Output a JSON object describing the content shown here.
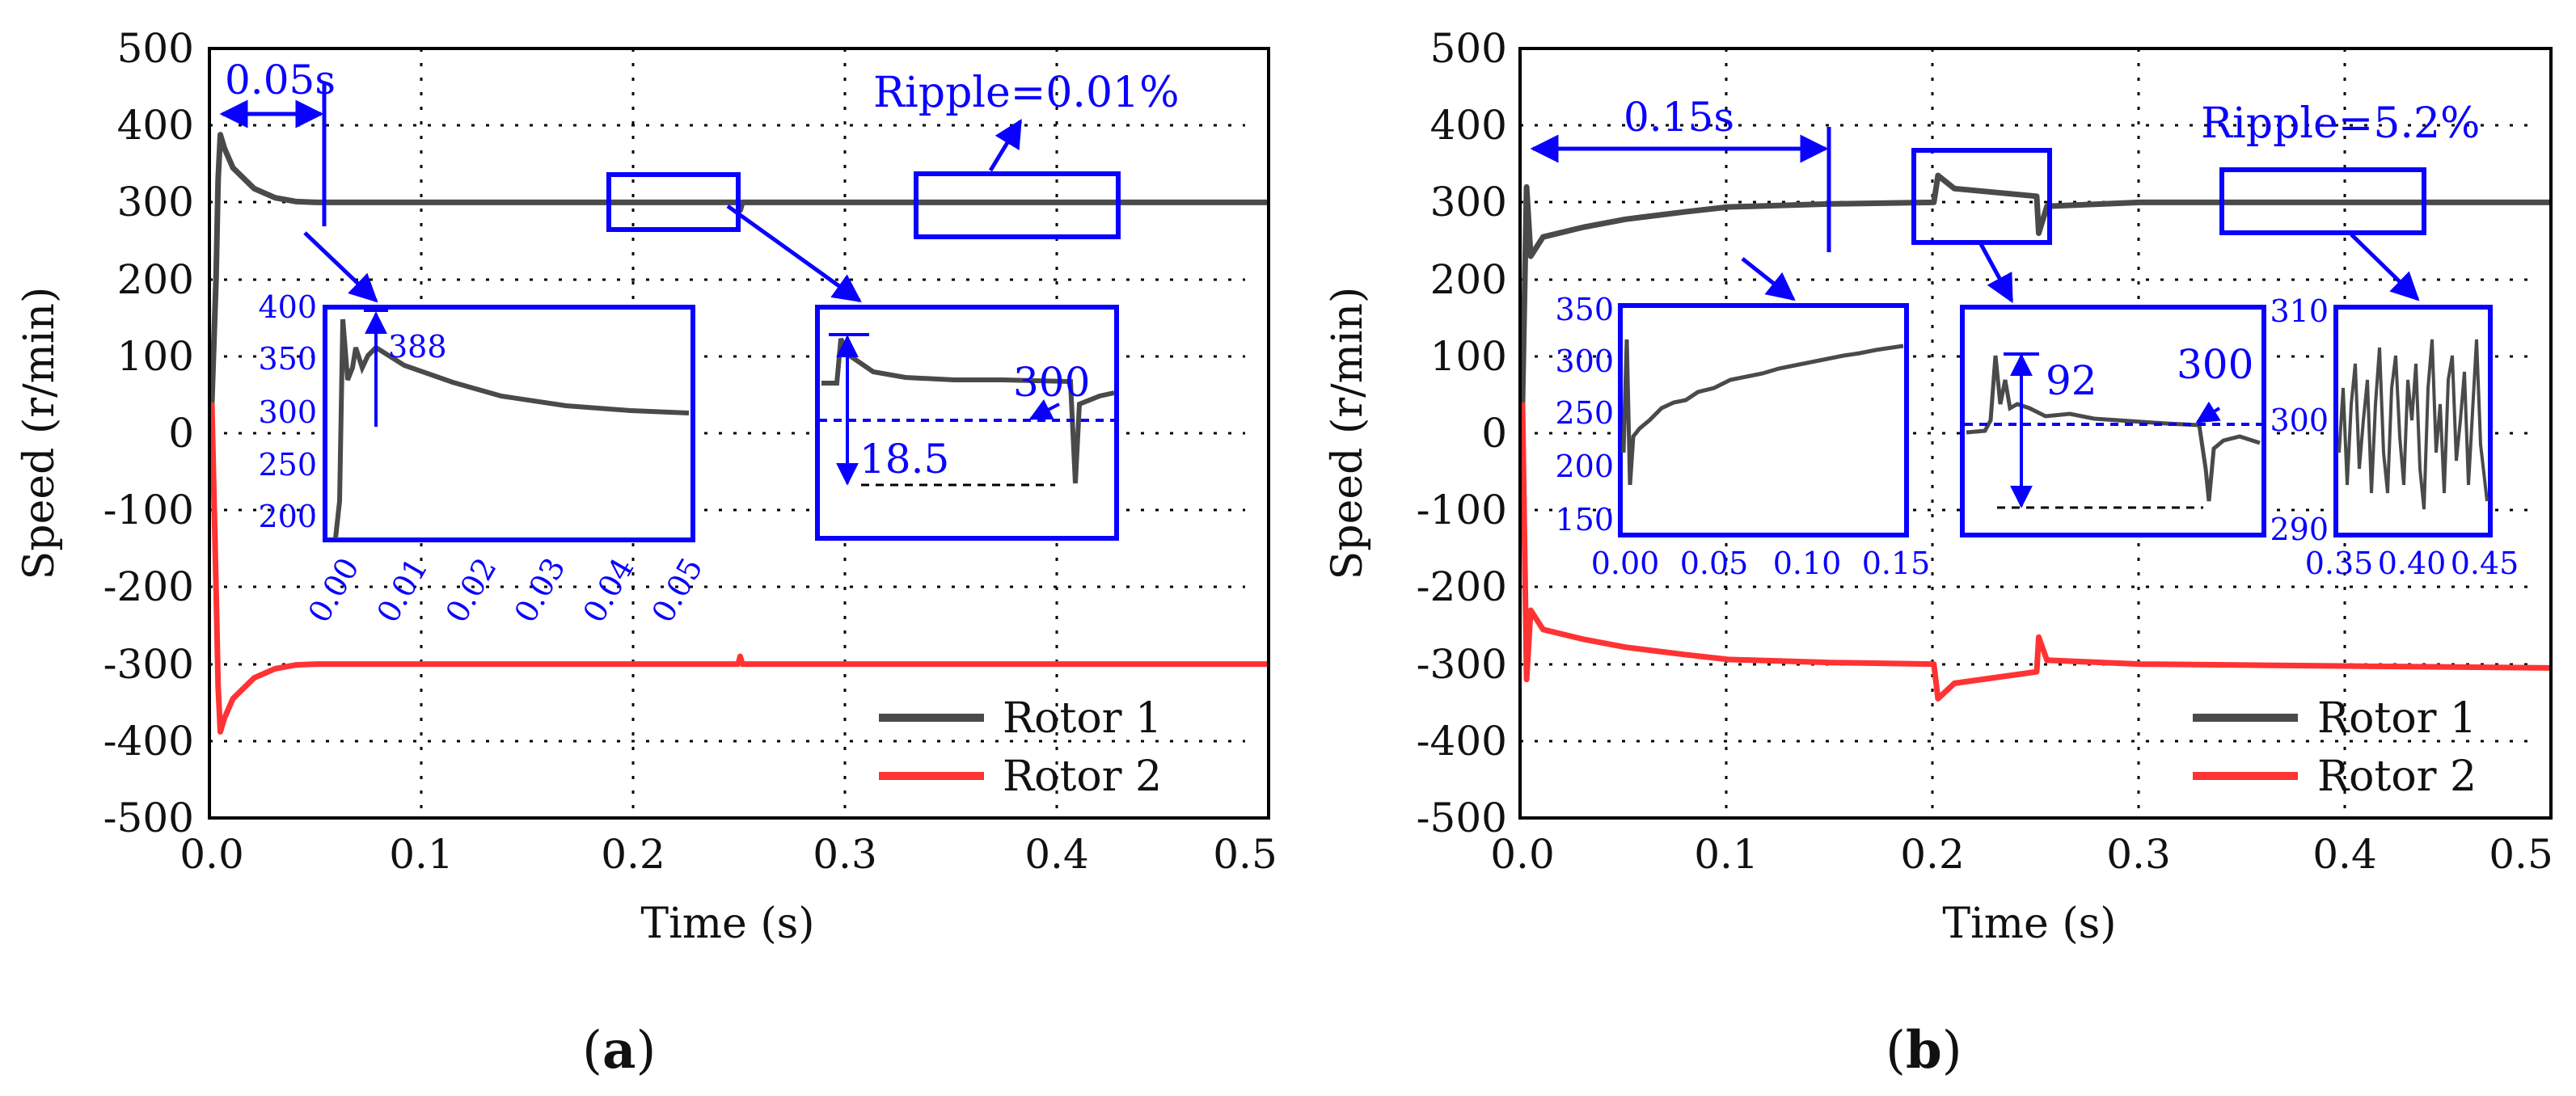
{
  "chart_data": [
    {
      "type": "line",
      "panel_label": "a",
      "xlabel": "Time (s)",
      "ylabel": "Speed (r/min)",
      "xlim": [
        0,
        0.5
      ],
      "ylim": [
        -500,
        500
      ],
      "xticks": [
        "0.0",
        "0.1",
        "0.2",
        "0.3",
        "0.4",
        "0.5"
      ],
      "yticks": [
        "500",
        "400",
        "300",
        "200",
        "100",
        "0",
        "-100",
        "-200",
        "-300",
        "-400",
        "-500"
      ],
      "grid": true,
      "legend_position": "bottom-right",
      "series": [
        {
          "name": "Rotor 1",
          "color": "#4a4a4a",
          "points": [
            [
              0,
              40
            ],
            [
              0.002,
              200
            ],
            [
              0.003,
              330
            ],
            [
              0.004,
              388
            ],
            [
              0.006,
              370
            ],
            [
              0.01,
              345
            ],
            [
              0.02,
              318
            ],
            [
              0.03,
              306
            ],
            [
              0.04,
              301
            ],
            [
              0.05,
              300
            ],
            [
              0.2,
              300
            ],
            [
              0.249,
              300
            ],
            [
              0.25,
              290
            ],
            [
              0.251,
              300
            ],
            [
              0.5,
              300
            ]
          ]
        },
        {
          "name": "Rotor 2",
          "color": "#ff3333",
          "points": [
            [
              0,
              40
            ],
            [
              0.002,
              -200
            ],
            [
              0.003,
              -330
            ],
            [
              0.004,
              -388
            ],
            [
              0.006,
              -370
            ],
            [
              0.01,
              -345
            ],
            [
              0.02,
              -318
            ],
            [
              0.03,
              -306
            ],
            [
              0.04,
              -301
            ],
            [
              0.05,
              -300
            ],
            [
              0.249,
              -300
            ],
            [
              0.25,
              -290
            ],
            [
              0.251,
              -300
            ],
            [
              0.5,
              -300
            ]
          ]
        }
      ],
      "annotations": {
        "settle_time": "0.05s",
        "ripple": "Ripple=0.01%",
        "inset1": {
          "yticks": [
            "400",
            "350",
            "300",
            "250",
            "200"
          ],
          "xticks": [
            "0.00",
            "0.01",
            "0.02",
            "0.03",
            "0.04",
            "0.05"
          ],
          "peak_label": "388"
        },
        "inset2": {
          "ref_label": "300",
          "drop_label": "18.5"
        }
      }
    },
    {
      "type": "line",
      "panel_label": "b",
      "xlabel": "Time (s)",
      "ylabel": "Speed (r/min)",
      "xlim": [
        0,
        0.5
      ],
      "ylim": [
        -500,
        500
      ],
      "xticks": [
        "0.0",
        "0.1",
        "0.2",
        "0.3",
        "0.4",
        "0.5"
      ],
      "yticks": [
        "500",
        "400",
        "300",
        "200",
        "100",
        "0",
        "-100",
        "-200",
        "-300",
        "-400",
        "-500"
      ],
      "grid": true,
      "legend_position": "bottom-right",
      "series": [
        {
          "name": "Rotor 1",
          "color": "#4a4a4a",
          "points": [
            [
              0,
              40
            ],
            [
              0.002,
              320
            ],
            [
              0.004,
              230
            ],
            [
              0.01,
              255
            ],
            [
              0.03,
              268
            ],
            [
              0.05,
              278
            ],
            [
              0.08,
              288
            ],
            [
              0.1,
              294
            ],
            [
              0.15,
              298
            ],
            [
              0.199,
              300
            ],
            [
              0.2,
              300
            ],
            [
              0.202,
              335
            ],
            [
              0.21,
              318
            ],
            [
              0.25,
              308
            ],
            [
              0.251,
              260
            ],
            [
              0.255,
              295
            ],
            [
              0.3,
              300
            ],
            [
              0.5,
              300
            ]
          ]
        },
        {
          "name": "Rotor 2",
          "color": "#ff3333",
          "points": [
            [
              0,
              40
            ],
            [
              0.002,
              -320
            ],
            [
              0.004,
              -230
            ],
            [
              0.01,
              -255
            ],
            [
              0.03,
              -268
            ],
            [
              0.05,
              -278
            ],
            [
              0.08,
              -288
            ],
            [
              0.1,
              -294
            ],
            [
              0.15,
              -298
            ],
            [
              0.199,
              -300
            ],
            [
              0.2,
              -300
            ],
            [
              0.202,
              -345
            ],
            [
              0.21,
              -325
            ],
            [
              0.25,
              -310
            ],
            [
              0.251,
              -265
            ],
            [
              0.255,
              -295
            ],
            [
              0.3,
              -300
            ],
            [
              0.5,
              -305
            ]
          ]
        }
      ],
      "annotations": {
        "settle_time": "0.15s",
        "ripple": "Ripple=5.2%",
        "inset1": {
          "yticks": [
            "350",
            "300",
            "250",
            "200",
            "150"
          ],
          "xticks": [
            "0.00",
            "0.05",
            "0.10",
            "0.15"
          ]
        },
        "inset2": {
          "peak_label": "92",
          "ref_label": "300"
        },
        "inset3": {
          "yticks": [
            "310",
            "300",
            "290"
          ],
          "xticks": [
            "0.35",
            "0.40",
            "0.45"
          ]
        }
      }
    }
  ]
}
